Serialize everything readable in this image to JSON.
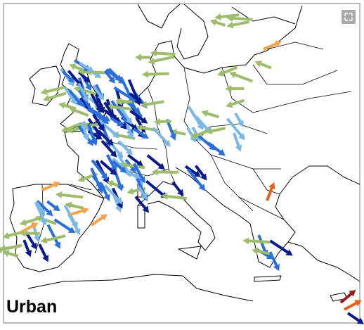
{
  "map": {
    "label": "Urban"
  }
}
